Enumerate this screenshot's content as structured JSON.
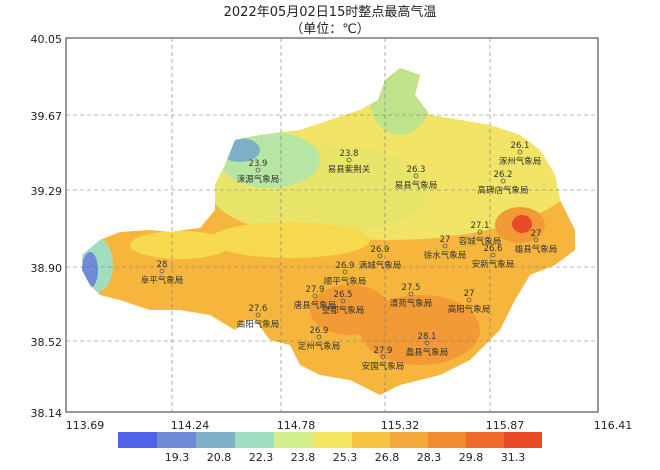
{
  "header": {
    "title": "2022年05月02日15时整点最高气温",
    "subtitle": "（单位：℃）"
  },
  "lat_labels": [
    "40.05",
    "39.67",
    "39.29",
    "38.90",
    "38.52",
    "38.14"
  ],
  "lon_labels": [
    "113.69",
    "114.24",
    "114.78",
    "115.32",
    "115.87",
    "116.41"
  ],
  "legend": {
    "labels": [
      "19.3",
      "20.8",
      "22.3",
      "23.8",
      "25.3",
      "26.8",
      "28.3",
      "29.8",
      "31.3"
    ]
  },
  "stations": [
    {
      "name": "涞源气象局",
      "value": "23.9"
    },
    {
      "name": "易县紫荆关",
      "value": "23.8"
    },
    {
      "name": "易县气象局",
      "value": "26.3"
    },
    {
      "name": "涿州气象局",
      "value": "26.1"
    },
    {
      "name": "高碑店气象局",
      "value": "26.2"
    },
    {
      "name": "容城气象局",
      "value": "27.1"
    },
    {
      "name": "雄县气象局",
      "value": "27"
    },
    {
      "name": "徐水气象局",
      "value": "27"
    },
    {
      "name": "安新气象局",
      "value": "26.6"
    },
    {
      "name": "满城气象局",
      "value": "26.9"
    },
    {
      "name": "顺平气象局",
      "value": "26.9"
    },
    {
      "name": "阜平气象局",
      "value": "28"
    },
    {
      "name": "唐县气象局",
      "value": "27.9"
    },
    {
      "name": "望都气象局",
      "value": "26.5"
    },
    {
      "name": "清苑气象局",
      "value": "27.5"
    },
    {
      "name": "高阳气象局",
      "value": "27"
    },
    {
      "name": "曲阳气象局",
      "value": "27.6"
    },
    {
      "name": "定州气象局",
      "value": "26.9"
    },
    {
      "name": "蠡县气象局",
      "value": "28.1"
    },
    {
      "name": "安国气象局",
      "value": "27.9"
    }
  ]
}
